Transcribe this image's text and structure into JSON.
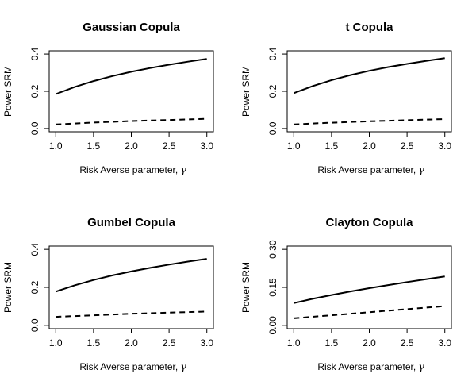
{
  "chart_data": [
    {
      "type": "line",
      "title": "Gaussian Copula",
      "xlabel": "Risk Averse parameter, ",
      "xlabel_symbol": "γ",
      "ylabel": "Power SRM",
      "xlim": [
        1.0,
        3.0
      ],
      "ylim": [
        0.0,
        0.4
      ],
      "xticks": [
        "1.0",
        "1.5",
        "2.0",
        "2.5",
        "3.0"
      ],
      "xtick_values": [
        1.0,
        1.5,
        2.0,
        2.5,
        3.0
      ],
      "yticks": [
        "0.0",
        "0.2",
        "0.4"
      ],
      "ytick_values": [
        0.0,
        0.2,
        0.4
      ],
      "grid": false,
      "x": [
        1.0,
        1.25,
        1.5,
        1.75,
        2.0,
        2.25,
        2.5,
        2.75,
        3.0
      ],
      "series": [
        {
          "style": "solid",
          "values": [
            0.185,
            0.223,
            0.255,
            0.282,
            0.305,
            0.325,
            0.343,
            0.359,
            0.374
          ]
        },
        {
          "style": "dashed",
          "values": [
            0.022,
            0.027,
            0.032,
            0.036,
            0.04,
            0.043,
            0.046,
            0.049,
            0.052
          ]
        }
      ]
    },
    {
      "type": "line",
      "title": "t Copula",
      "xlabel": "Risk Averse parameter, ",
      "xlabel_symbol": "γ",
      "ylabel": "Power SRM",
      "xlim": [
        1.0,
        3.0
      ],
      "ylim": [
        0.0,
        0.4
      ],
      "xticks": [
        "1.0",
        "1.5",
        "2.0",
        "2.5",
        "3.0"
      ],
      "xtick_values": [
        1.0,
        1.5,
        2.0,
        2.5,
        3.0
      ],
      "yticks": [
        "0.0",
        "0.2",
        "0.4"
      ],
      "ytick_values": [
        0.0,
        0.2,
        0.4
      ],
      "grid": false,
      "x": [
        1.0,
        1.25,
        1.5,
        1.75,
        2.0,
        2.25,
        2.5,
        2.75,
        3.0
      ],
      "series": [
        {
          "style": "solid",
          "values": [
            0.19,
            0.228,
            0.26,
            0.287,
            0.31,
            0.33,
            0.347,
            0.363,
            0.378
          ]
        },
        {
          "style": "dashed",
          "values": [
            0.022,
            0.027,
            0.031,
            0.035,
            0.039,
            0.042,
            0.045,
            0.048,
            0.051
          ]
        }
      ]
    },
    {
      "type": "line",
      "title": "Gumbel Copula",
      "xlabel": "Risk Averse parameter, ",
      "xlabel_symbol": "γ",
      "ylabel": "Power SRM",
      "xlim": [
        1.0,
        3.0
      ],
      "ylim": [
        0.0,
        0.4
      ],
      "xticks": [
        "1.0",
        "1.5",
        "2.0",
        "2.5",
        "3.0"
      ],
      "xtick_values": [
        1.0,
        1.5,
        2.0,
        2.5,
        3.0
      ],
      "yticks": [
        "0.0",
        "0.2",
        "0.4"
      ],
      "ytick_values": [
        0.0,
        0.2,
        0.4
      ],
      "grid": false,
      "x": [
        1.0,
        1.25,
        1.5,
        1.75,
        2.0,
        2.25,
        2.5,
        2.75,
        3.0
      ],
      "series": [
        {
          "style": "solid",
          "values": [
            0.178,
            0.211,
            0.239,
            0.263,
            0.284,
            0.303,
            0.32,
            0.336,
            0.35
          ]
        },
        {
          "style": "dashed",
          "values": [
            0.045,
            0.049,
            0.053,
            0.057,
            0.061,
            0.064,
            0.067,
            0.07,
            0.073
          ]
        }
      ]
    },
    {
      "type": "line",
      "title": "Clayton Copula",
      "xlabel": "Risk Averse parameter, ",
      "xlabel_symbol": "γ",
      "ylabel": "Power SRM",
      "xlim": [
        1.0,
        3.0
      ],
      "ylim": [
        0.0,
        0.3
      ],
      "xticks": [
        "1.0",
        "1.5",
        "2.0",
        "2.5",
        "3.0"
      ],
      "xtick_values": [
        1.0,
        1.5,
        2.0,
        2.5,
        3.0
      ],
      "yticks": [
        "0.00",
        "0.15",
        "0.30"
      ],
      "ytick_values": [
        0.0,
        0.15,
        0.3
      ],
      "grid": false,
      "x": [
        1.0,
        1.25,
        1.5,
        1.75,
        2.0,
        2.25,
        2.5,
        2.75,
        3.0
      ],
      "series": [
        {
          "style": "solid",
          "values": [
            0.088,
            0.105,
            0.12,
            0.134,
            0.147,
            0.159,
            0.171,
            0.182,
            0.193
          ]
        },
        {
          "style": "dashed",
          "values": [
            0.028,
            0.034,
            0.04,
            0.046,
            0.052,
            0.058,
            0.064,
            0.07,
            0.076
          ]
        }
      ]
    }
  ]
}
